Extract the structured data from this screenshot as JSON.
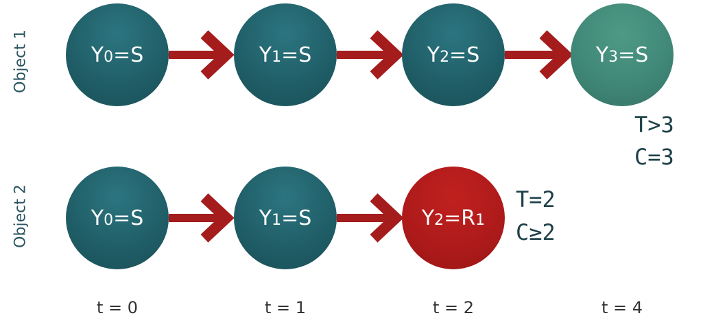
{
  "row_labels": {
    "object1": "Object 1",
    "object2": "Object 2"
  },
  "object1": {
    "nodes": [
      {
        "y": "Y",
        "sub": "0",
        "val": "=S"
      },
      {
        "y": "Y",
        "sub": "1",
        "val": "=S"
      },
      {
        "y": "Y",
        "sub": "2",
        "val": "=S"
      },
      {
        "y": "Y",
        "sub": "3",
        "val": "=S"
      }
    ],
    "note_line1": "T>3",
    "note_line2": "C=3"
  },
  "object2": {
    "nodes": [
      {
        "y": "Y",
        "sub": "0",
        "val": "=S"
      },
      {
        "y": "Y",
        "sub": "1",
        "val": "=S"
      },
      {
        "y": "Y",
        "sub": "2",
        "val": "=R",
        "val_sub": "1"
      }
    ],
    "note_line1": "T=2",
    "note_line2": "C≥2"
  },
  "time_labels": [
    "t = 0",
    "t = 1",
    "t = 2",
    "t = 4"
  ],
  "colors": {
    "node": "#1f5d66",
    "node_last": "#3f8676",
    "event_node": "#ad1a1a",
    "arrow": "#a51c1c"
  }
}
